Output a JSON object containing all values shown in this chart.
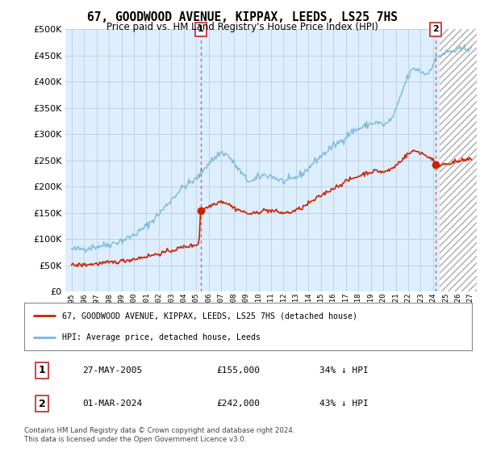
{
  "title": "67, GOODWOOD AVENUE, KIPPAX, LEEDS, LS25 7HS",
  "subtitle": "Price paid vs. HM Land Registry's House Price Index (HPI)",
  "legend_line1": "67, GOODWOOD AVENUE, KIPPAX, LEEDS, LS25 7HS (detached house)",
  "legend_line2": "HPI: Average price, detached house, Leeds",
  "annotation1_label": "1",
  "annotation1_date": "27-MAY-2005",
  "annotation1_price": "£155,000",
  "annotation1_hpi": "34% ↓ HPI",
  "annotation2_label": "2",
  "annotation2_date": "01-MAR-2024",
  "annotation2_price": "£242,000",
  "annotation2_hpi": "43% ↓ HPI",
  "footnote": "Contains HM Land Registry data © Crown copyright and database right 2024.\nThis data is licensed under the Open Government Licence v3.0.",
  "sale1_year": 2005.37,
  "sale1_value": 155000,
  "sale2_year": 2024.17,
  "sale2_value": 242000,
  "hpi_color": "#7ab8d9",
  "price_color": "#cc2200",
  "dashed_color": "#cc4444",
  "background_color": "#ffffff",
  "chart_bg_color": "#ddeeff",
  "grid_color": "#bbccdd",
  "hatch_start": 2024.5,
  "ylim_min": 0,
  "ylim_max": 500000,
  "xlim_min": 1994.5,
  "xlim_max": 2027.5,
  "yticks": [
    0,
    50000,
    100000,
    150000,
    200000,
    250000,
    300000,
    350000,
    400000,
    450000,
    500000
  ],
  "xticks": [
    1995,
    1996,
    1997,
    1998,
    1999,
    2000,
    2001,
    2002,
    2003,
    2004,
    2005,
    2006,
    2007,
    2008,
    2009,
    2010,
    2011,
    2012,
    2013,
    2014,
    2015,
    2016,
    2017,
    2018,
    2019,
    2020,
    2021,
    2022,
    2023,
    2024,
    2025,
    2026,
    2027
  ]
}
